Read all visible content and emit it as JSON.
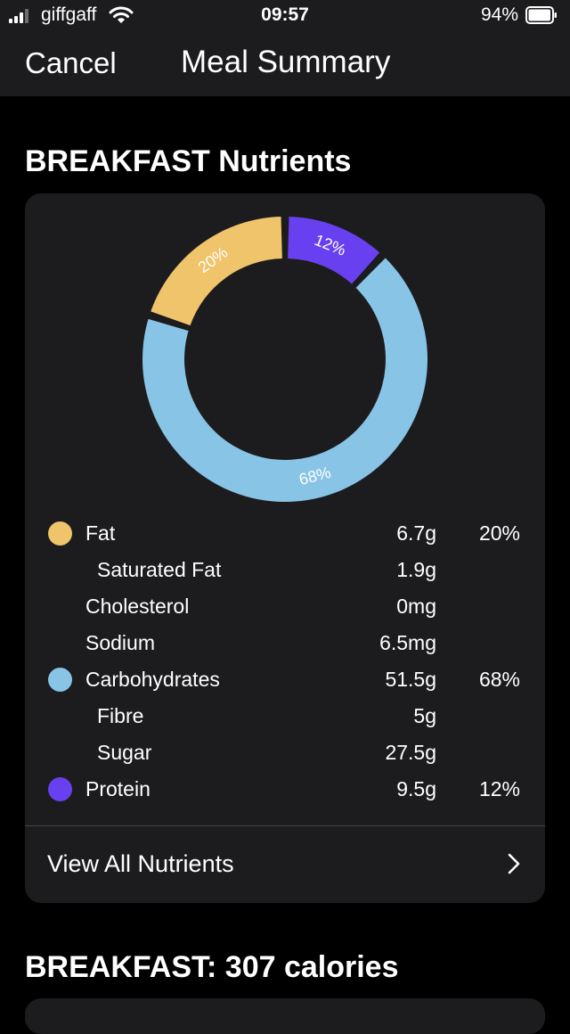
{
  "status_bar": {
    "carrier": "giffgaff",
    "time": "09:57",
    "battery": "94%"
  },
  "nav": {
    "cancel_label": "Cancel",
    "title": "Meal Summary"
  },
  "nutrients_section": {
    "title": "BREAKFAST Nutrients",
    "chart_data": {
      "type": "pie",
      "style": "donut",
      "slices": [
        {
          "label": "12%",
          "value": 12,
          "color": "#6940f0"
        },
        {
          "label": "68%",
          "value": 68,
          "color": "#88c4e6"
        },
        {
          "label": "20%",
          "value": 20,
          "color": "#efc46a"
        }
      ]
    },
    "rows": [
      {
        "name": "Fat",
        "amount": "6.7g",
        "percent": "20%",
        "dot": "#efc46a",
        "indent": false
      },
      {
        "name": "Saturated Fat",
        "amount": "1.9g",
        "percent": "",
        "dot": "",
        "indent": true
      },
      {
        "name": "Cholesterol",
        "amount": "0mg",
        "percent": "",
        "dot": "",
        "indent": false
      },
      {
        "name": "Sodium",
        "amount": "6.5mg",
        "percent": "",
        "dot": "",
        "indent": false
      },
      {
        "name": "Carbohydrates",
        "amount": "51.5g",
        "percent": "68%",
        "dot": "#88c4e6",
        "indent": false
      },
      {
        "name": "Fibre",
        "amount": "5g",
        "percent": "",
        "dot": "",
        "indent": true
      },
      {
        "name": "Sugar",
        "amount": "27.5g",
        "percent": "",
        "dot": "",
        "indent": true
      },
      {
        "name": "Protein",
        "amount": "9.5g",
        "percent": "12%",
        "dot": "#6940f0",
        "indent": false
      }
    ],
    "view_all_label": "View All Nutrients"
  },
  "calories_section": {
    "title": "BREAKFAST: 307 calories"
  }
}
